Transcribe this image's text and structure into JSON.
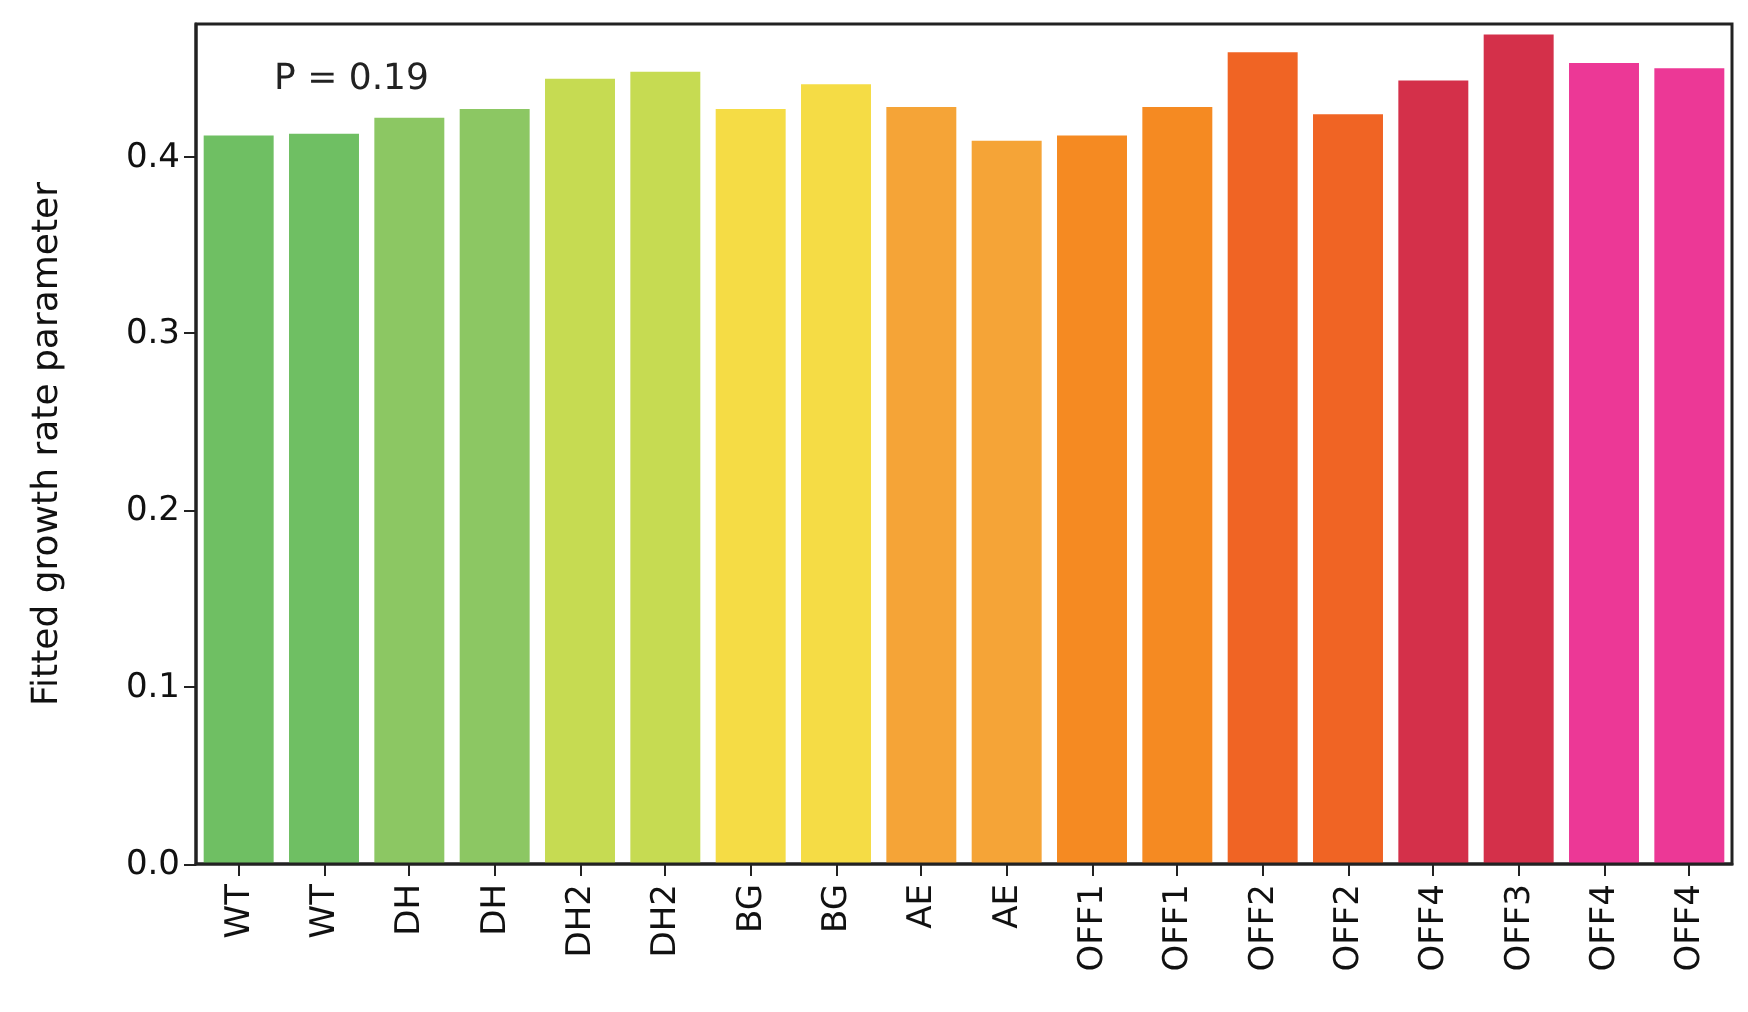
{
  "chart_data": {
    "type": "bar",
    "ylabel": "Fitted growth rate parameter",
    "categories": [
      "WT",
      "WT",
      "DH",
      "DH",
      "DH2",
      "DH2",
      "BG",
      "BG",
      "AE",
      "AE",
      "OFF1",
      "OFF1",
      "OFF2",
      "OFF2",
      "OFF4",
      "OFF3",
      "OFF4",
      "OFF4"
    ],
    "values": [
      0.412,
      0.413,
      0.422,
      0.427,
      0.444,
      0.448,
      0.427,
      0.441,
      0.428,
      0.409,
      0.412,
      0.428,
      0.459,
      0.424,
      0.443,
      0.469,
      0.453,
      0.45
    ],
    "colors": [
      "#6fbf63",
      "#6fbf63",
      "#8cc763",
      "#8cc763",
      "#c6db52",
      "#c6db52",
      "#f5dc45",
      "#f5dc45",
      "#f5a437",
      "#f5a437",
      "#f58a22",
      "#f58a22",
      "#f06424",
      "#f06424",
      "#d4304a",
      "#d4304a",
      "#ec3896",
      "#ec3896"
    ],
    "ylim": [
      0,
      0.475
    ],
    "yticks": [
      {
        "value": 0,
        "label": "0.0"
      },
      0.1,
      0.2,
      0.3,
      0.4
    ],
    "annotations": [
      "P = 0.19"
    ],
    "grid": false
  }
}
